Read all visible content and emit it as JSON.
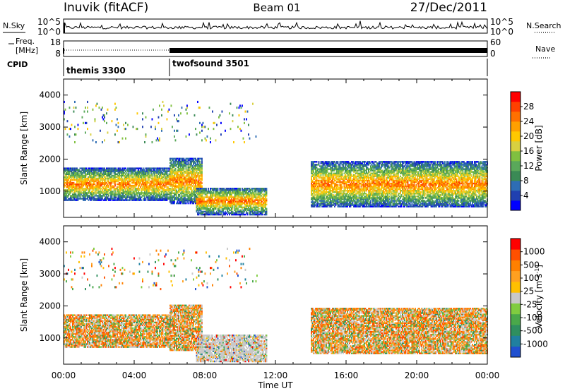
{
  "header": {
    "station": "Inuvik (fitACF)",
    "beam": "Beam 01",
    "date": "27/Dec/2011"
  },
  "nsky_panel": {
    "left_label": "N.Sky",
    "right_label": "N.Search",
    "left_ticks": [
      "10^5",
      "10^0"
    ],
    "right_ticks": [
      "10^5",
      "10^0"
    ]
  },
  "freq_panel": {
    "left_label_1": "Freq.",
    "left_label_2": "[MHz]",
    "right_label": "Nave",
    "left_ticks": [
      "18",
      "8"
    ],
    "right_ticks": [
      "60",
      "0"
    ]
  },
  "cpid_panel": {
    "label": "CPID",
    "modes": [
      {
        "name": "themis 3300",
        "start_hour": 0
      },
      {
        "name": "twofsound 3501",
        "start_hour": 6
      }
    ]
  },
  "x_axis": {
    "label": "Time UT",
    "range_hours": [
      0,
      24
    ],
    "ticks": [
      "00:00",
      "04:00",
      "08:00",
      "12:00",
      "16:00",
      "20:00",
      "00:00"
    ]
  },
  "chart_data": [
    {
      "type": "heatmap",
      "name": "power",
      "ylabel": "Slant Range [km]",
      "ylim": [
        180,
        4500
      ],
      "yticks": [
        "4000",
        "3000",
        "2000",
        "1000"
      ],
      "xlim": [
        0,
        24
      ],
      "colorbar": {
        "label": "Power [dB]",
        "ticks": [
          "28",
          "24",
          "20",
          "16",
          "12",
          "8",
          "4"
        ],
        "colors": [
          "#0000ff",
          "#2040b0",
          "#2e6db4",
          "#3a8a55",
          "#5aa85a",
          "#80c040",
          "#d8d040",
          "#ffc800",
          "#ffa000",
          "#ff7000",
          "#ff4000",
          "#ff0000"
        ]
      },
      "regions": [
        {
          "t_start": 0.0,
          "t_end": 6.0,
          "r_min": 700,
          "r_max": 1700,
          "level": "high"
        },
        {
          "t_start": 6.0,
          "t_end": 7.8,
          "r_min": 600,
          "r_max": 2000,
          "level": "high"
        },
        {
          "t_start": 7.5,
          "t_end": 11.5,
          "r_min": 250,
          "r_max": 1100,
          "level": "high"
        },
        {
          "t_start": 14.0,
          "t_end": 24.0,
          "r_min": 500,
          "r_max": 1900,
          "level": "high"
        },
        {
          "t_start": 0.0,
          "t_end": 11.0,
          "r_min": 2500,
          "r_max": 3800,
          "level": "sparse"
        }
      ]
    },
    {
      "type": "heatmap",
      "name": "velocity",
      "ylabel": "Slant Range [km]",
      "ylim": [
        180,
        4500
      ],
      "yticks": [
        "4000",
        "3000",
        "2000",
        "1000"
      ],
      "xlim": [
        0,
        24
      ],
      "colorbar": {
        "label": "Velocity [m s^-1]",
        "ticks": [
          "1000",
          "500",
          "100",
          "25",
          "-25",
          "-100",
          "-500",
          "-1000"
        ],
        "colors": [
          "#2050d0",
          "#2080a0",
          "#2f8f5f",
          "#4aa84a",
          "#80cc40",
          "#c8c8c8",
          "#ffc000",
          "#ffa020",
          "#ff8000",
          "#ff5000",
          "#ff0000"
        ]
      },
      "regions": [
        {
          "t_start": 0.0,
          "t_end": 6.0,
          "r_min": 700,
          "r_max": 1700,
          "level": "mixed"
        },
        {
          "t_start": 6.0,
          "t_end": 7.8,
          "r_min": 600,
          "r_max": 2000,
          "level": "mixed"
        },
        {
          "t_start": 7.5,
          "t_end": 11.5,
          "r_min": 250,
          "r_max": 1100,
          "level": "ground"
        },
        {
          "t_start": 14.0,
          "t_end": 24.0,
          "r_min": 500,
          "r_max": 1900,
          "level": "mixed"
        },
        {
          "t_start": 0.0,
          "t_end": 11.0,
          "r_min": 2500,
          "r_max": 3800,
          "level": "sparse"
        }
      ]
    }
  ]
}
